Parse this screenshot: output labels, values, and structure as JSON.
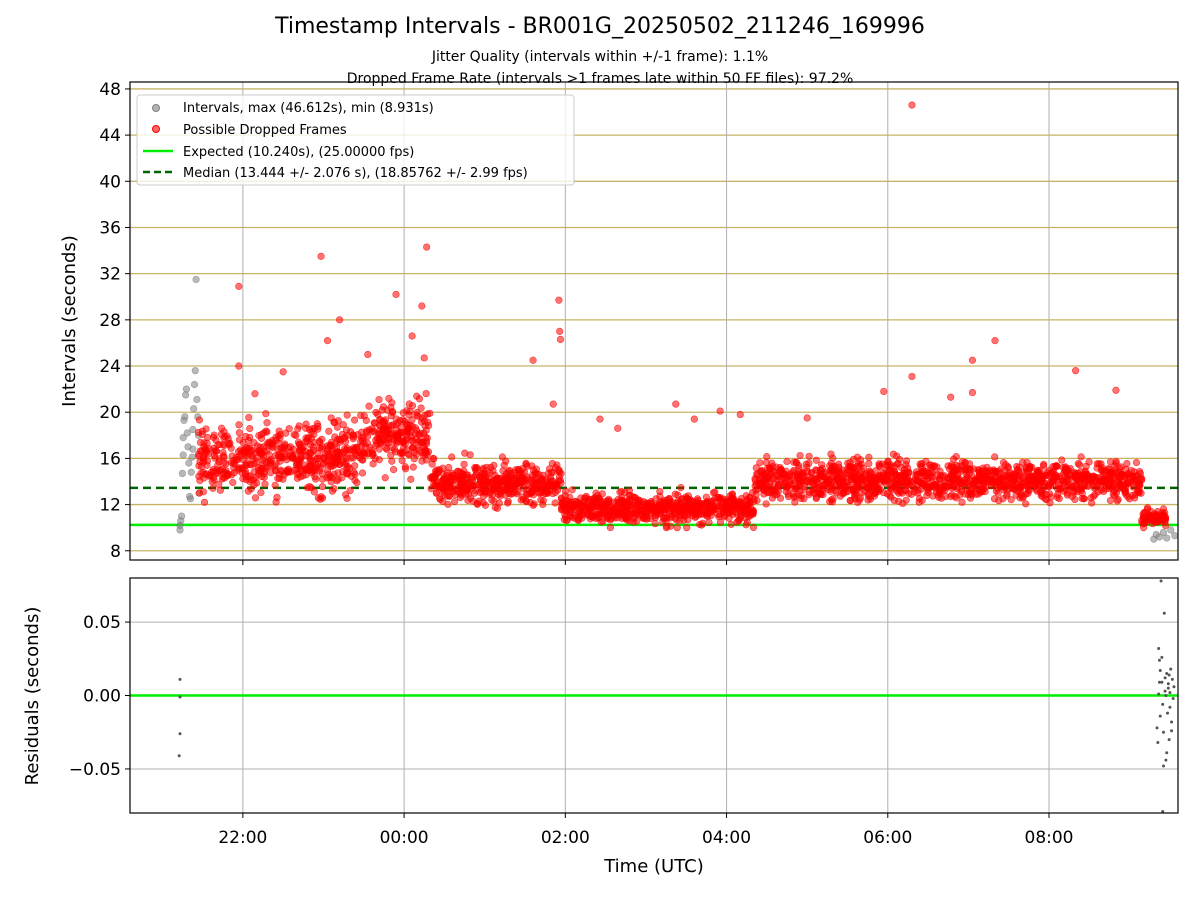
{
  "figure": {
    "title": "Timestamp Intervals - BR001G_20250502_211246_169996",
    "subtitle_line1": "Jitter Quality (intervals within +/-1 frame): 1.1%",
    "subtitle_line2": "Dropped Frame Rate (intervals >1 frames late within 50 FF files): 97.2%"
  },
  "colors": {
    "intervals": "#808080",
    "dropped": "#ff0000",
    "expected": "#00ee00",
    "median": "#006400",
    "hgrid_top": "#c8b464",
    "grid": "#b0b0b0"
  },
  "chart_data": [
    {
      "type": "scatter",
      "panel": "intervals",
      "ylabel": "Intervals (seconds)",
      "xlim_hours": [
        -3.4,
        9.6
      ],
      "ylim": [
        7.2,
        48.6
      ],
      "yticks": [
        8,
        12,
        16,
        20,
        24,
        28,
        32,
        36,
        40,
        44,
        48
      ],
      "grid": "horizontal lines",
      "legend_position": "top-left",
      "legend": [
        "Intervals, max (46.612s), min (8.931s)",
        "Possible Dropped Frames",
        "Expected (10.240s), (25.00000 fps)",
        "Median (13.444 +/- 2.076 s), (18.85762 +/- 2.99 fps)"
      ],
      "reference_lines": {
        "expected": 10.24,
        "median": 13.444
      },
      "series": [
        {
          "name": "Intervals, max (46.612s), min (8.931s)",
          "points": [
            [
              -2.78,
              9.8
            ],
            [
              -2.78,
              10.2
            ],
            [
              -2.77,
              10.6
            ],
            [
              -2.76,
              11.0
            ],
            [
              -2.75,
              14.7
            ],
            [
              -2.74,
              16.3
            ],
            [
              -2.74,
              17.8
            ],
            [
              -2.73,
              19.3
            ],
            [
              -2.72,
              19.6
            ],
            [
              -2.71,
              21.5
            ],
            [
              -2.7,
              22.0
            ],
            [
              -2.69,
              18.2
            ],
            [
              -2.68,
              17.0
            ],
            [
              -2.67,
              15.6
            ],
            [
              -2.66,
              12.7
            ],
            [
              -2.65,
              12.5
            ],
            [
              -2.64,
              14.8
            ],
            [
              -2.63,
              16.1
            ],
            [
              -2.62,
              16.8
            ],
            [
              -2.62,
              18.5
            ],
            [
              -2.61,
              20.3
            ],
            [
              -2.6,
              22.4
            ],
            [
              -2.59,
              23.6
            ],
            [
              -2.58,
              31.5
            ],
            [
              -2.57,
              21.1
            ],
            [
              -2.56,
              19.6
            ],
            [
              -2.55,
              18.0
            ],
            [
              -2.54,
              13.0
            ],
            [
              9.3,
              9.0
            ],
            [
              9.33,
              9.4
            ],
            [
              9.37,
              9.2
            ],
            [
              9.42,
              9.6
            ],
            [
              9.46,
              9.1
            ],
            [
              9.51,
              9.8
            ],
            [
              9.56,
              9.3
            ]
          ]
        },
        {
          "name": "Possible Dropped Frames",
          "bands": [
            {
              "from": -2.55,
              "to": -0.55,
              "center": 16.0,
              "spread": 5.0
            },
            {
              "from": -0.55,
              "to": 0.32,
              "center": 18.0,
              "spread": 5.0
            },
            {
              "from": 0.32,
              "to": 1.95,
              "center": 13.8,
              "spread": 3.0
            },
            {
              "from": 1.95,
              "to": 4.35,
              "center": 11.7,
              "spread": 2.3
            },
            {
              "from": 4.35,
              "to": 9.15,
              "center": 14.1,
              "spread": 3.0
            },
            {
              "from": 9.15,
              "to": 9.45,
              "center": 10.8,
              "spread": 1.2
            }
          ],
          "outliers": [
            [
              -2.05,
              30.9
            ],
            [
              -2.05,
              24.0
            ],
            [
              -1.85,
              21.6
            ],
            [
              -1.5,
              23.5
            ],
            [
              -1.03,
              33.5
            ],
            [
              -0.95,
              26.2
            ],
            [
              -0.8,
              28.0
            ],
            [
              -0.45,
              25.0
            ],
            [
              -0.1,
              30.2
            ],
            [
              0.1,
              26.6
            ],
            [
              0.22,
              29.2
            ],
            [
              0.25,
              24.7
            ],
            [
              0.28,
              34.3
            ],
            [
              1.6,
              24.5
            ],
            [
              1.85,
              20.7
            ],
            [
              1.92,
              29.7
            ],
            [
              1.93,
              27.0
            ],
            [
              1.94,
              26.3
            ],
            [
              2.43,
              19.4
            ],
            [
              2.65,
              18.6
            ],
            [
              3.37,
              20.7
            ],
            [
              3.6,
              19.4
            ],
            [
              3.92,
              20.1
            ],
            [
              4.17,
              19.8
            ],
            [
              5.0,
              19.5
            ],
            [
              5.95,
              21.8
            ],
            [
              6.3,
              46.6
            ],
            [
              6.3,
              23.1
            ],
            [
              6.78,
              21.3
            ],
            [
              7.05,
              24.5
            ],
            [
              7.05,
              21.7
            ],
            [
              7.33,
              26.2
            ],
            [
              8.33,
              23.6
            ],
            [
              8.83,
              21.9
            ]
          ]
        }
      ]
    },
    {
      "type": "scatter",
      "panel": "residuals",
      "ylabel": "Residuals (seconds)",
      "xlabel": "Time (UTC)",
      "xlim_hours": [
        -3.4,
        9.6
      ],
      "ylim": [
        -0.08,
        0.08
      ],
      "yticks": [
        -0.05,
        0.0,
        0.05
      ],
      "ytick_labels": [
        "−0.05",
        "0.00",
        "0.05"
      ],
      "xticks_hours": [
        -2,
        0,
        2,
        4,
        6,
        8
      ],
      "xtick_labels": [
        "22:00",
        "00:00",
        "02:00",
        "04:00",
        "06:00",
        "08:00"
      ],
      "zero_line": 0.0,
      "series": [
        {
          "name": "",
          "points": [
            [
              -2.78,
              0.011
            ],
            [
              -2.78,
              -0.001
            ],
            [
              -2.78,
              -0.026
            ],
            [
              -2.79,
              -0.041
            ],
            [
              9.34,
              -0.022
            ],
            [
              9.35,
              -0.032
            ],
            [
              9.36,
              0.032
            ],
            [
              9.37,
              0.024
            ],
            [
              9.38,
              0.017
            ],
            [
              9.39,
              0.078
            ],
            [
              9.4,
              0.009
            ],
            [
              9.41,
              -0.006
            ],
            [
              9.42,
              -0.025
            ],
            [
              9.43,
              0.056
            ],
            [
              9.44,
              0.003
            ],
            [
              9.45,
              -0.044
            ],
            [
              9.46,
              0.015
            ],
            [
              9.47,
              -0.012
            ],
            [
              9.48,
              0.008
            ],
            [
              9.49,
              -0.03
            ],
            [
              9.5,
              0.002
            ],
            [
              9.51,
              0.018
            ],
            [
              9.52,
              -0.018
            ],
            [
              9.53,
              0.011
            ],
            [
              9.54,
              -0.002
            ],
            [
              9.55,
              0.006
            ],
            [
              9.36,
              0.001
            ],
            [
              9.38,
              -0.014
            ],
            [
              9.4,
              0.026
            ],
            [
              9.42,
              -0.048
            ],
            [
              9.44,
              0.012
            ],
            [
              9.46,
              -0.039
            ],
            [
              9.48,
              0.005
            ],
            [
              9.5,
              -0.008
            ],
            [
              9.37,
              0.009
            ],
            [
              9.41,
              -0.079
            ],
            [
              9.45,
              0.0
            ],
            [
              9.49,
              0.014
            ],
            [
              9.52,
              -0.024
            ]
          ]
        }
      ]
    }
  ]
}
